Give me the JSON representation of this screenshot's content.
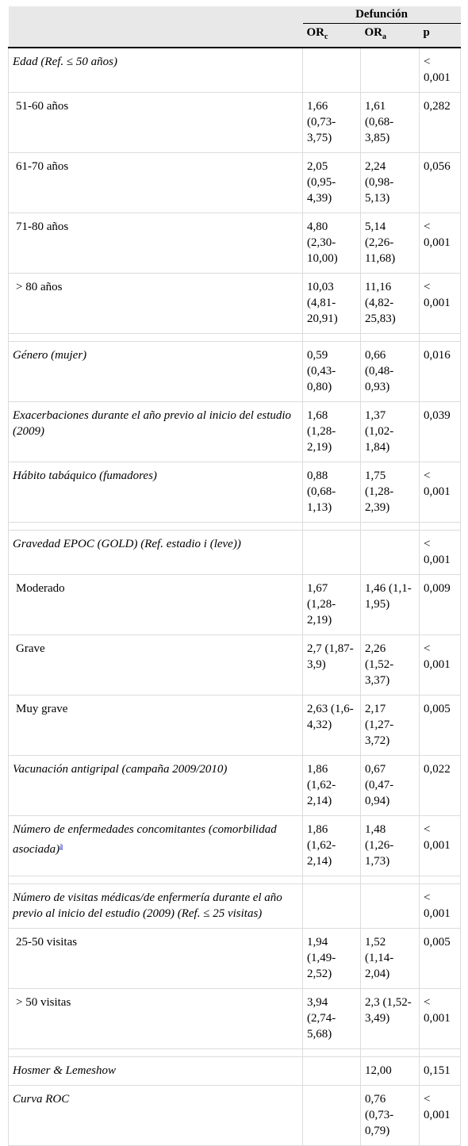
{
  "header": {
    "group": "Defunción",
    "col_orc_main": "OR",
    "col_orc_sub": "c",
    "col_ora_main": "OR",
    "col_ora_sub": "a",
    "col_p": "p"
  },
  "rows": [
    {
      "label": "Edad (Ref. ≤ 50 años)",
      "orc": "",
      "ora": "",
      "p": "< 0,001"
    },
    {
      "label": "51-60 años",
      "orc": "1,66 (0,73-3,75)",
      "ora": "1,61 (0,68-3,85)",
      "p": "0,282"
    },
    {
      "label": "61-70 años",
      "orc": "2,05 (0,95-4,39)",
      "ora": "2,24 (0,98-5,13)",
      "p": "0,056"
    },
    {
      "label": "71-80 años",
      "orc": "4,80 (2,30-10,00)",
      "ora": "5,14 (2,26-11,68)",
      "p": "< 0,001"
    },
    {
      "label": "> 80 años",
      "orc": "10,03 (4,81-20,91)",
      "ora": "11,16 (4,82-25,83)",
      "p": "< 0,001"
    },
    {
      "label": "Género (mujer)",
      "orc": "0,59 (0,43-0,80)",
      "ora": "0,66 (0,48-0,93)",
      "p": "0,016"
    },
    {
      "label": "Exacerbaciones durante el año previo al inicio del estudio (2009)",
      "orc": "1,68 (1,28-2,19)",
      "ora": "1,37 (1,02-1,84)",
      "p": "0,039"
    },
    {
      "label": "Hábito tabáquico (fumadores)",
      "orc": "0,88 (0,68-1,13)",
      "ora": "1,75 (1,28-2,39)",
      "p": "< 0,001"
    },
    {
      "label": "Gravedad EPOC (GOLD) (Ref. estadio i (leve))",
      "orc": "",
      "ora": "",
      "p": "< 0,001"
    },
    {
      "label": "Moderado",
      "orc": "1,67 (1,28-2,19)",
      "ora": "1,46 (1,1-1,95)",
      "p": "0,009"
    },
    {
      "label": "Grave",
      "orc": "2,7 (1,87-3,9)",
      "ora": "2,26 (1,52-3,37)",
      "p": "< 0,001"
    },
    {
      "label": "Muy grave",
      "orc": "2,63 (1,6-4,32)",
      "ora": "2,17 (1,27-3,72)",
      "p": "0,005"
    },
    {
      "label": "Vacunación antigripal (campaña 2009/2010)",
      "orc": "1,86 (1,62-2,14)",
      "ora": "0,67 (0,47-0,94)",
      "p": "0,022"
    },
    {
      "label": "Número de enfermedades concomitantes (comorbilidad asociada)",
      "footnote": "a",
      "orc": "1,86 (1,62-2,14)",
      "ora": "1,48 (1,26-1,73)",
      "p": "< 0,001"
    },
    {
      "label": "Número de visitas médicas/de enfermería durante el año previo al inicio del estudio (2009) (Ref. ≤ 25 visitas)",
      "orc": "",
      "ora": "",
      "p": "< 0,001"
    },
    {
      "label": "25-50 visitas",
      "orc": "1,94 (1,49-2,52)",
      "ora": "1,52 (1,14-2,04)",
      "p": "0,005"
    },
    {
      "label": "> 50 visitas",
      "orc": "3,94 (2,74-5,68)",
      "ora": "2,3 (1,52-3,49)",
      "p": "< 0,001"
    },
    {
      "label": "Hosmer & Lemeshow",
      "orc": "",
      "ora": "12,00",
      "p": "0,151"
    },
    {
      "label": "Curva ROC",
      "orc": "",
      "ora": "0,76 (0,73-0,79)",
      "p": "< 0,001"
    }
  ]
}
